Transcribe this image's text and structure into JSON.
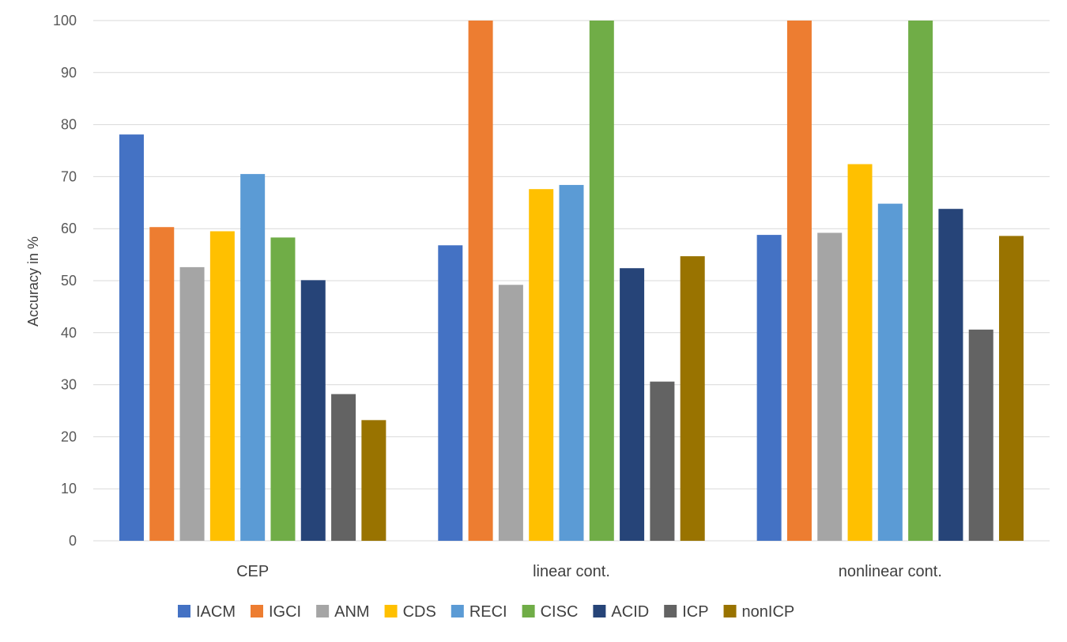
{
  "chart_data": {
    "type": "bar",
    "title": "",
    "xlabel": "",
    "ylabel": "Accuracy in %",
    "ylim": [
      0,
      100
    ],
    "yticks": [
      0,
      10,
      20,
      30,
      40,
      50,
      60,
      70,
      80,
      90,
      100
    ],
    "grid": true,
    "legend_position": "bottom",
    "categories": [
      "CEP",
      "linear cont.",
      "nonlinear cont."
    ],
    "series": [
      {
        "name": "IACM",
        "color": "#4472C4",
        "values": [
          78.1,
          56.8,
          58.8
        ]
      },
      {
        "name": "IGCI",
        "color": "#ED7D31",
        "values": [
          60.3,
          100,
          100
        ]
      },
      {
        "name": "ANM",
        "color": "#A5A5A5",
        "values": [
          52.6,
          49.2,
          59.2
        ]
      },
      {
        "name": "CDS",
        "color": "#FFC000",
        "values": [
          59.5,
          67.6,
          72.4
        ]
      },
      {
        "name": "RECI",
        "color": "#5B9BD5",
        "values": [
          70.5,
          68.4,
          64.8
        ]
      },
      {
        "name": "CISC",
        "color": "#70AD47",
        "values": [
          58.3,
          100,
          100
        ]
      },
      {
        "name": "ACID",
        "color": "#264478",
        "values": [
          50.1,
          52.4,
          63.8
        ]
      },
      {
        "name": "ICP",
        "color": "#636363",
        "values": [
          28.2,
          30.6,
          40.6
        ]
      },
      {
        "name": "nonICP",
        "color": "#997300",
        "values": [
          23.2,
          54.7,
          58.6
        ]
      }
    ]
  }
}
